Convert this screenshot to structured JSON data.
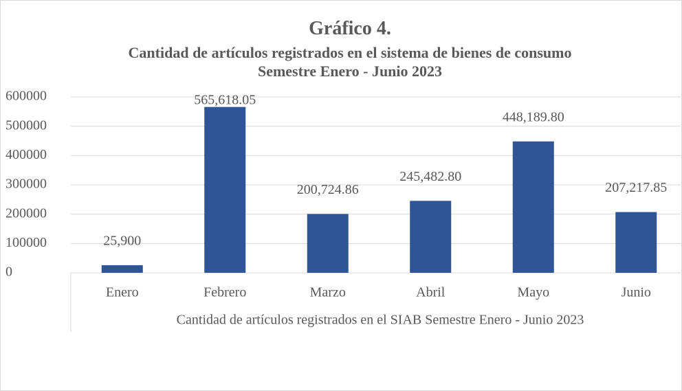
{
  "chart_data": {
    "type": "bar",
    "title": "Gráfico 4.",
    "subtitle": "Cantidad de artículos registrados en el sistema de bienes de consumo Semestre Enero - Junio 2023",
    "x_label": "Cantidad de artículos registrados en el SIAB Semestre Enero - Junio 2023",
    "categories": [
      "Enero",
      "Febrero",
      "Marzo",
      "Abril",
      "Mayo",
      "Junio"
    ],
    "values": [
      25900,
      565618.05,
      200724.86,
      245482.8,
      448189.8,
      207217.85
    ],
    "value_labels": [
      "25,900",
      "565,618.05",
      "200,724.86",
      "245,482.80",
      "448,189.80",
      "207,217.85"
    ],
    "color": "#2f5597",
    "ylim": [
      0,
      600000
    ],
    "yticks": [
      0,
      100000,
      200000,
      300000,
      400000,
      500000,
      600000
    ],
    "grid": true
  }
}
